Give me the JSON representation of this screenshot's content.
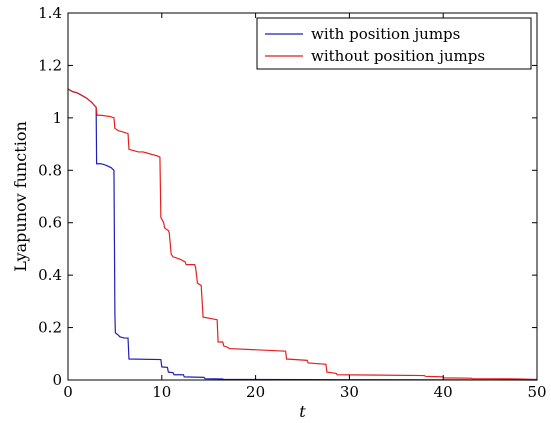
{
  "chart_data": {
    "type": "line",
    "xlabel": "t",
    "ylabel": "Lyapunov function",
    "xlim": [
      0,
      50
    ],
    "ylim": [
      0,
      1.4
    ],
    "xticks": [
      "0",
      "10",
      "20",
      "30",
      "40",
      "50"
    ],
    "yticks": [
      "0",
      "0.2",
      "0.4",
      "0.6",
      "0.8",
      "1",
      "1.2",
      "1.4"
    ],
    "xtick_values": [
      0,
      10,
      20,
      30,
      40,
      50
    ],
    "ytick_values": [
      0,
      0.2,
      0.4,
      0.6,
      0.8,
      1.0,
      1.2,
      1.4
    ],
    "grid": false,
    "legend_position": "top-right",
    "series": [
      {
        "name": "with position jumps",
        "color": "#1f1fb4",
        "x": [
          0,
          0.5,
          1,
          1.5,
          2,
          2.5,
          3.0,
          3.05,
          3.5,
          4.0,
          4.6,
          4.9,
          5.0,
          5.05,
          5.4,
          5.5,
          6.0,
          6.4,
          6.5,
          9.9,
          10.0,
          10.6,
          10.7,
          11.2,
          11.3,
          12.3,
          12.4,
          14.5,
          14.6,
          16.5,
          16.6,
          20,
          30,
          50
        ],
        "y": [
          1.11,
          1.1,
          1.095,
          1.085,
          1.075,
          1.06,
          1.04,
          0.825,
          0.825,
          0.82,
          0.81,
          0.8,
          0.25,
          0.18,
          0.17,
          0.165,
          0.16,
          0.16,
          0.08,
          0.078,
          0.05,
          0.048,
          0.03,
          0.028,
          0.02,
          0.02,
          0.012,
          0.01,
          0.005,
          0.004,
          0.002,
          0.002,
          0.001,
          0.0
        ]
      },
      {
        "name": "without position jumps",
        "color": "#e51f1f",
        "x": [
          0,
          0.5,
          1,
          1.5,
          2,
          2.5,
          3.0,
          3.1,
          3.5,
          4.5,
          4.9,
          5.0,
          5.4,
          5.5,
          6.4,
          6.5,
          7.5,
          8.0,
          8.5,
          9.0,
          9.5,
          9.8,
          9.9,
          10.2,
          10.3,
          10.7,
          10.8,
          11.0,
          11.2,
          12.0,
          12.5,
          12.6,
          13.5,
          13.6,
          13.8,
          14.2,
          14.4,
          15.9,
          16.0,
          16.5,
          16.6,
          17.0,
          17.2,
          23.2,
          23.3,
          25.5,
          25.6,
          27.5,
          27.6,
          28.6,
          28.7,
          38.0,
          38.1,
          40.0,
          40.1,
          43,
          43.1,
          48,
          50
        ],
        "y": [
          1.11,
          1.1,
          1.095,
          1.085,
          1.075,
          1.06,
          1.04,
          1.01,
          1.01,
          1.005,
          1.0,
          0.96,
          0.95,
          0.95,
          0.94,
          0.88,
          0.87,
          0.87,
          0.865,
          0.86,
          0.855,
          0.85,
          0.62,
          0.6,
          0.58,
          0.57,
          0.56,
          0.48,
          0.47,
          0.46,
          0.45,
          0.44,
          0.44,
          0.43,
          0.37,
          0.36,
          0.24,
          0.23,
          0.145,
          0.145,
          0.13,
          0.125,
          0.12,
          0.11,
          0.08,
          0.075,
          0.065,
          0.06,
          0.03,
          0.025,
          0.02,
          0.017,
          0.014,
          0.012,
          0.008,
          0.007,
          0.005,
          0.004,
          0.002
        ]
      }
    ]
  }
}
